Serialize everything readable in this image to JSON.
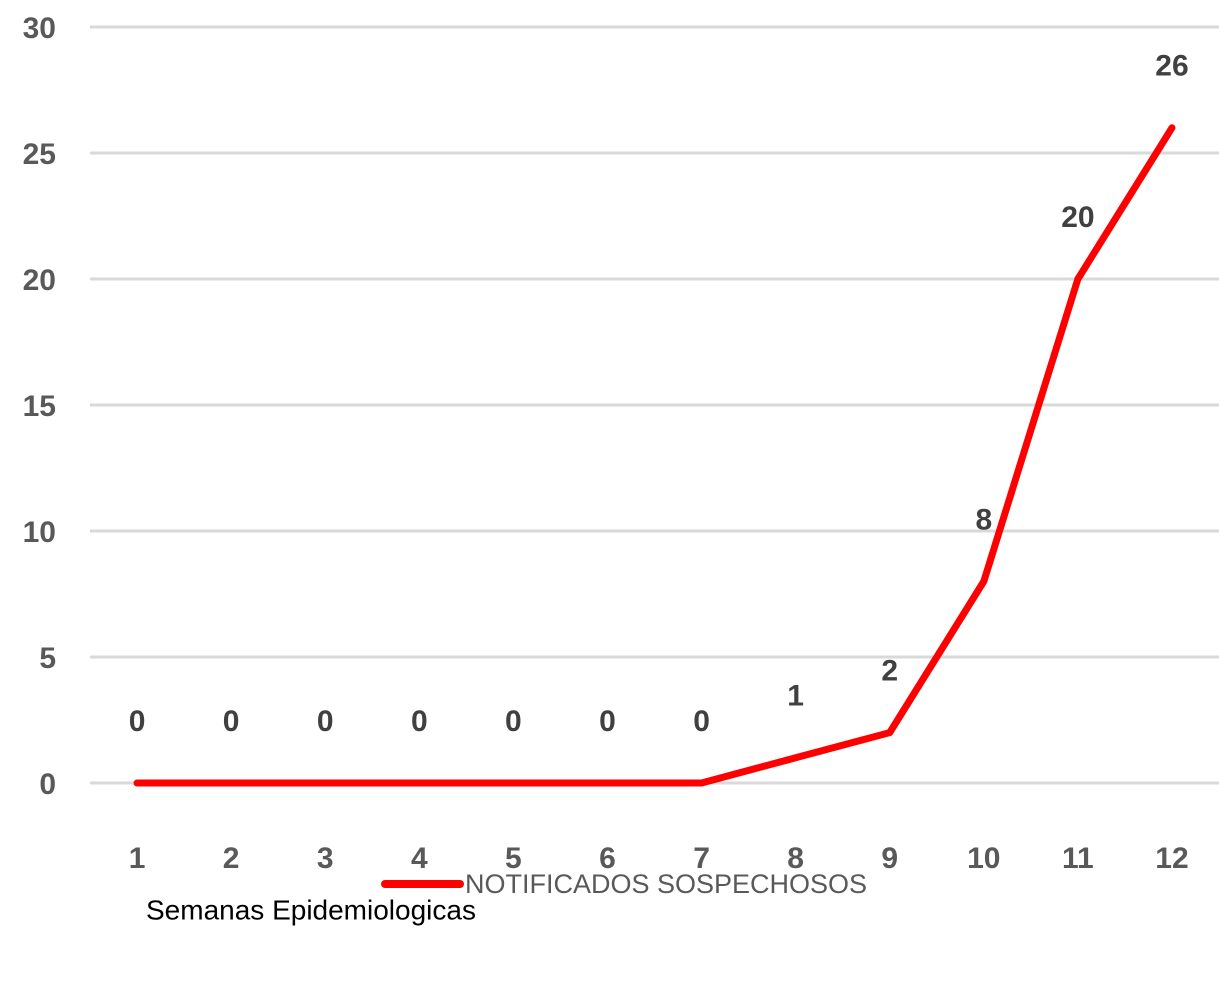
{
  "chart_data": {
    "type": "line",
    "categories": [
      "1",
      "2",
      "3",
      "4",
      "5",
      "6",
      "7",
      "8",
      "9",
      "10",
      "11",
      "12"
    ],
    "series": [
      {
        "name": "NOTIFICADOS SOSPECHOSOS",
        "color": "#ff0000",
        "values": [
          0,
          0,
          0,
          0,
          0,
          0,
          0,
          1,
          2,
          8,
          20,
          26
        ]
      }
    ],
    "x_label": "Semanas Epidemiologicas",
    "ylim": [
      0,
      30
    ],
    "yticks": [
      0,
      5,
      10,
      15,
      20,
      25,
      30
    ],
    "grid": true,
    "legend": "bottom"
  }
}
